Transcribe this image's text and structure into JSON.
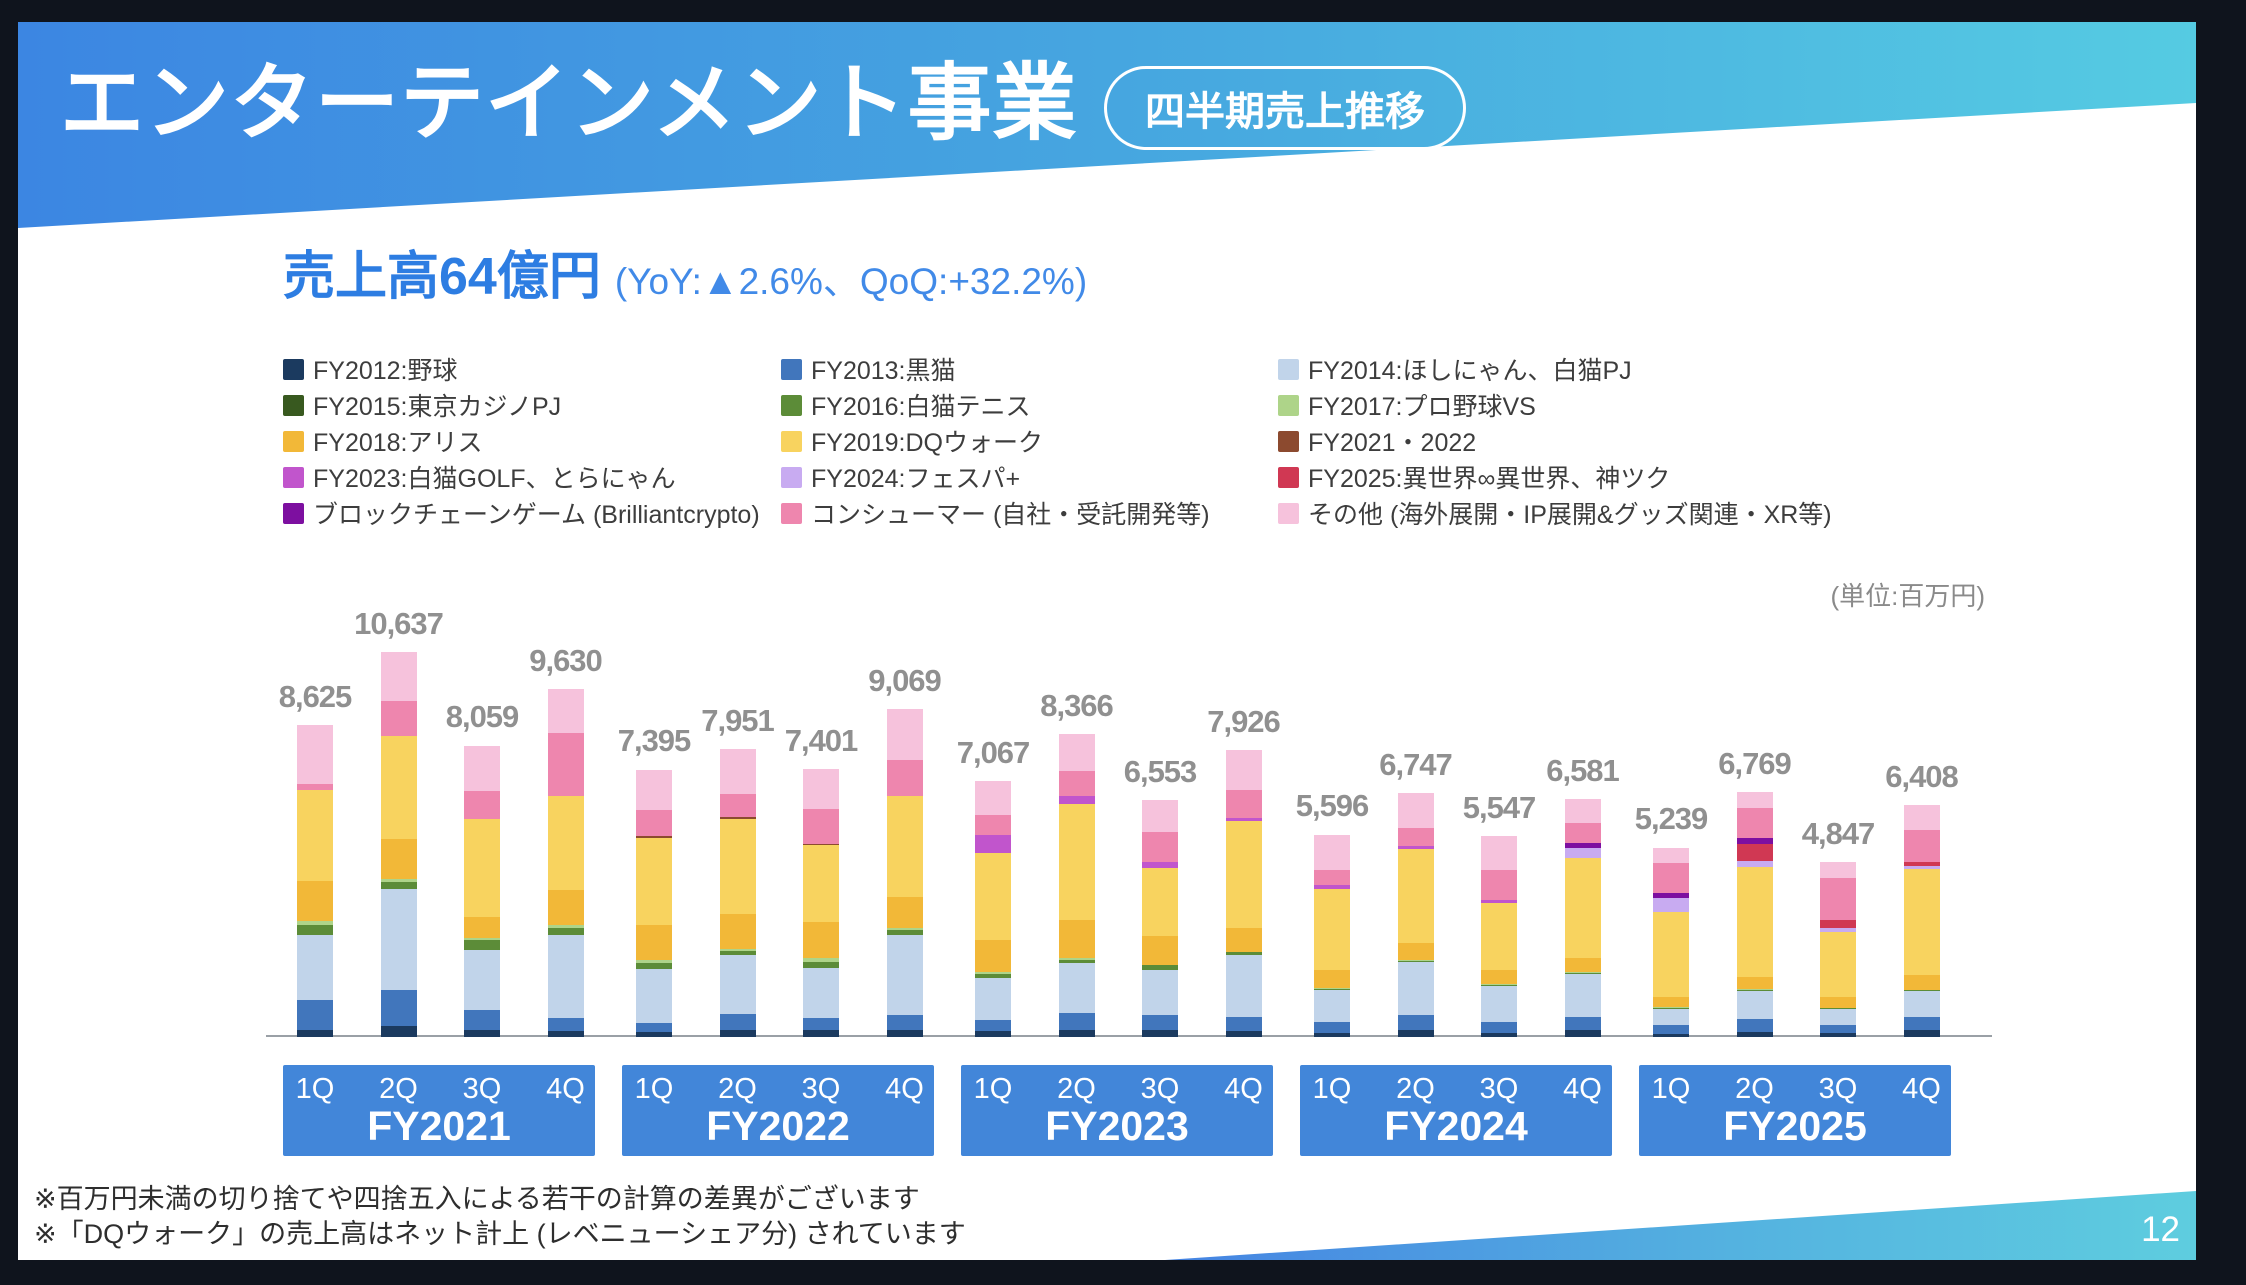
{
  "slide": {
    "title": "エンターテインメント事業",
    "badge": "四半期売上推移",
    "headline": "売上高64億円",
    "headline_note": "(YoY:▲2.6%、QoQ:+32.2%)",
    "unit_label": "(単位:百万円)",
    "notes": [
      "※百万円未満の切り捨てや四捨五入による若干の計算の差異がございます",
      "※「DQウォーク」の売上高はネット計上 (レベニューシェア分) されています"
    ],
    "page_number": "12"
  },
  "legend": {
    "items": [
      {
        "label": "FY2012:野球",
        "color": "#1b3a5f"
      },
      {
        "label": "FY2013:黒猫",
        "color": "#4176bc"
      },
      {
        "label": "FY2014:ほしにゃん、白猫PJ",
        "color": "#c1d4ea"
      },
      {
        "label": "FY2015:東京カジノPJ",
        "color": "#38591f"
      },
      {
        "label": "FY2016:白猫テニス",
        "color": "#5c8c38"
      },
      {
        "label": "FY2017:プロ野球VS",
        "color": "#aed489"
      },
      {
        "label": "FY2018:アリス",
        "color": "#f2b838"
      },
      {
        "label": "FY2019:DQウォーク",
        "color": "#f8d35f"
      },
      {
        "label": "FY2021・2022",
        "color": "#8c4a2f"
      },
      {
        "label": "FY2023:白猫GOLF、とらにゃん",
        "color": "#c155cc"
      },
      {
        "label": "FY2024:フェスパ+",
        "color": "#c8abf1"
      },
      {
        "label": "FY2025:異世界∞異世界、神ツク",
        "color": "#d03853"
      },
      {
        "label": "ブロックチェーンゲーム (Brilliantcrypto)",
        "color": "#7d0fa0"
      },
      {
        "label": "コンシューマー (自社・受託開発等)",
        "color": "#ee86ae"
      },
      {
        "label": "その他 (海外展開・IP展開&グッズ関連・XR等)",
        "color": "#f6c2dc"
      }
    ]
  },
  "chart_data": {
    "type": "bar",
    "stacked": true,
    "unit": "百万円",
    "ylim": [
      0,
      11000
    ],
    "value_labels_shown": true,
    "legend_position": "top",
    "groups": [
      {
        "label": "FY2021",
        "quarters": [
          "1Q",
          "2Q",
          "3Q",
          "4Q"
        ],
        "totals": [
          8625,
          10637,
          8059,
          9630
        ],
        "total_labels": [
          "8,625",
          "10,637",
          "8,059",
          "9,630"
        ]
      },
      {
        "label": "FY2022",
        "quarters": [
          "1Q",
          "2Q",
          "3Q",
          "4Q"
        ],
        "totals": [
          7395,
          7951,
          7401,
          9069
        ],
        "total_labels": [
          "7,395",
          "7,951",
          "7,401",
          "9,069"
        ]
      },
      {
        "label": "FY2023",
        "quarters": [
          "1Q",
          "2Q",
          "3Q",
          "4Q"
        ],
        "totals": [
          7067,
          8366,
          6553,
          7926
        ],
        "total_labels": [
          "7,067",
          "8,366",
          "6,553",
          "7,926"
        ]
      },
      {
        "label": "FY2024",
        "quarters": [
          "1Q",
          "2Q",
          "3Q",
          "4Q"
        ],
        "totals": [
          5596,
          6747,
          5547,
          6581
        ],
        "total_labels": [
          "5,596",
          "6,747",
          "5,547",
          "6,581"
        ]
      },
      {
        "label": "FY2025",
        "quarters": [
          "1Q",
          "2Q",
          "3Q",
          "4Q"
        ],
        "totals": [
          5239,
          6769,
          4847,
          6408
        ],
        "total_labels": [
          "5,239",
          "6,769",
          "4,847",
          "6,408"
        ]
      }
    ],
    "series": [
      {
        "name": "FY2012:野球",
        "color": "#1b3a5f",
        "values": [
          194,
          304,
          194,
          166,
          138,
          194,
          194,
          194,
          166,
          194,
          194,
          166,
          111,
          194,
          111,
          194,
          83,
          138,
          111,
          194
        ]
      },
      {
        "name": "FY2013:黒猫",
        "color": "#4176bc",
        "values": [
          830,
          995,
          553,
          359,
          249,
          442,
          332,
          415,
          304,
          470,
          415,
          387,
          304,
          415,
          304,
          359,
          249,
          359,
          221,
          359
        ]
      },
      {
        "name": "FY2014:ほしにゃん、白猫PJ",
        "color": "#c1d4ea",
        "values": [
          1797,
          2784,
          1659,
          2300,
          1493,
          1631,
          1382,
          2212,
          1161,
          1382,
          1244,
          1714,
          885,
          1465,
          995,
          1189,
          442,
          774,
          442,
          719
        ]
      },
      {
        "name": "FY2015:東京カジノPJ",
        "color": "#38591f",
        "values": [
          0,
          0,
          0,
          0,
          0,
          0,
          0,
          0,
          0,
          0,
          0,
          0,
          0,
          0,
          0,
          0,
          0,
          0,
          0,
          0
        ]
      },
      {
        "name": "FY2016:白猫テニス",
        "color": "#5c8c38",
        "values": [
          277,
          194,
          277,
          194,
          166,
          111,
          166,
          138,
          111,
          83,
          138,
          83,
          28,
          28,
          28,
          28,
          28,
          28,
          28,
          28
        ]
      },
      {
        "name": "FY2017:プロ野球VS",
        "color": "#aed489",
        "values": [
          111,
          83,
          55,
          83,
          83,
          55,
          111,
          55,
          55,
          55,
          0,
          0,
          28,
          28,
          28,
          28,
          28,
          28,
          0,
          0
        ]
      },
      {
        "name": "FY2018:アリス",
        "color": "#f2b838",
        "values": [
          1106,
          1106,
          581,
          968,
          968,
          968,
          995,
          857,
          885,
          1051,
          802,
          664,
          498,
          470,
          387,
          387,
          277,
          332,
          304,
          415
        ]
      },
      {
        "name": "FY2019:DQウォーク",
        "color": "#f8d35f",
        "values": [
          2513,
          2848,
          2722,
          2599,
          2418,
          2615,
          2119,
          2793,
          2394,
          3196,
          1879,
          2949,
          2248,
          2598,
          1841,
          2764,
          2362,
          3036,
          1806,
          2923
        ]
      },
      {
        "name": "FY2021・2022",
        "color": "#8c4a2f",
        "values": [
          0,
          0,
          0,
          0,
          55,
          55,
          28,
          0,
          0,
          0,
          0,
          0,
          0,
          0,
          0,
          0,
          0,
          0,
          0,
          0
        ]
      },
      {
        "name": "FY2023:白猫GOLF、とらにゃん",
        "color": "#c155cc",
        "values": [
          0,
          0,
          0,
          0,
          0,
          0,
          0,
          0,
          498,
          221,
          166,
          83,
          111,
          83,
          83,
          0,
          0,
          0,
          0,
          0
        ]
      },
      {
        "name": "FY2024:フェスパ+",
        "color": "#c8abf1",
        "values": [
          0,
          0,
          0,
          0,
          0,
          0,
          0,
          0,
          0,
          0,
          0,
          0,
          0,
          0,
          0,
          277,
          387,
          166,
          111,
          83
        ]
      },
      {
        "name": "FY2025:異世界∞異世界、神ツク",
        "color": "#d03853",
        "values": [
          0,
          0,
          0,
          0,
          0,
          0,
          0,
          0,
          0,
          0,
          0,
          0,
          0,
          0,
          0,
          0,
          0,
          470,
          221,
          111
        ]
      },
      {
        "name": "ブロックチェーンゲーム (Brilliantcrypto)",
        "color": "#7d0fa0",
        "values": [
          0,
          0,
          0,
          0,
          0,
          0,
          0,
          0,
          0,
          0,
          0,
          0,
          0,
          0,
          0,
          138,
          138,
          166,
          0,
          0
        ]
      },
      {
        "name": "コンシューマー (自社・受託開発等)",
        "color": "#ee86ae",
        "values": [
          166,
          968,
          774,
          1742,
          719,
          636,
          968,
          995,
          553,
          691,
          830,
          774,
          415,
          498,
          830,
          553,
          830,
          830,
          1161,
          885
        ]
      },
      {
        "name": "その他 (海外展開・IP展開&グッズ関連・XR等)",
        "color": "#f6c2dc",
        "values": [
          1631,
          1355,
          1244,
          1217,
          1106,
          1244,
          1106,
          1410,
          940,
          1023,
          885,
          1106,
          968,
          968,
          940,
          664,
          415,
          442,
          442,
          691
        ]
      }
    ]
  }
}
